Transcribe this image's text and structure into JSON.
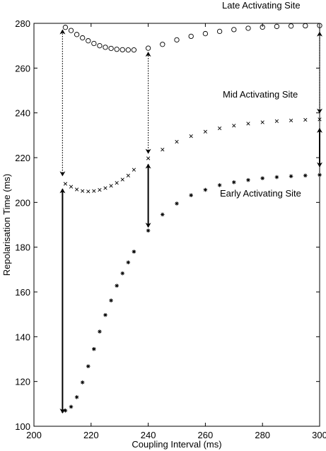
{
  "chart_data": {
    "type": "scatter",
    "xlabel": "Coupling Interval (ms)",
    "ylabel": "Repolarisation Time (ms)",
    "xlim": [
      200,
      300
    ],
    "ylim": [
      100,
      280
    ],
    "xticks": [
      200,
      220,
      240,
      260,
      280,
      300
    ],
    "yticks": [
      100,
      120,
      140,
      160,
      180,
      200,
      220,
      240,
      260,
      280
    ],
    "grid": false,
    "annotations": [
      {
        "text": "Late Activating Site",
        "series": "late"
      },
      {
        "text": "Mid Activating Site",
        "series": "mid"
      },
      {
        "text": "Early Activating Site",
        "series": "early"
      }
    ],
    "series": [
      {
        "key": "late",
        "marker": "circle",
        "points": [
          [
            211,
            278.2
          ],
          [
            213,
            276.8
          ],
          [
            215,
            275
          ],
          [
            217,
            273.5
          ],
          [
            219,
            272.2
          ],
          [
            221,
            271
          ],
          [
            223,
            270
          ],
          [
            225,
            269.3
          ],
          [
            227,
            268.8
          ],
          [
            229,
            268.4
          ],
          [
            231,
            268.2
          ],
          [
            233,
            268.1
          ],
          [
            235,
            268.1
          ],
          [
            240,
            268.9
          ],
          [
            245,
            270.6
          ],
          [
            250,
            272.6
          ],
          [
            255,
            274.2
          ],
          [
            260,
            275.4
          ],
          [
            265,
            276.4
          ],
          [
            270,
            277.2
          ],
          [
            275,
            277.8
          ],
          [
            280,
            278.3
          ],
          [
            285,
            278.6
          ],
          [
            290,
            278.8
          ],
          [
            295,
            278.9
          ],
          [
            300,
            279
          ]
        ]
      },
      {
        "key": "mid",
        "marker": "x",
        "points": [
          [
            211,
            208.3
          ],
          [
            213,
            207
          ],
          [
            215,
            205.8
          ],
          [
            217,
            205.1
          ],
          [
            219,
            204.9
          ],
          [
            221,
            205.1
          ],
          [
            223,
            205.6
          ],
          [
            225,
            206.4
          ],
          [
            227,
            207.4
          ],
          [
            229,
            208.7
          ],
          [
            231,
            210.2
          ],
          [
            233,
            212
          ],
          [
            235,
            214.6
          ],
          [
            240,
            219.7
          ],
          [
            245,
            223.6
          ],
          [
            250,
            227.1
          ],
          [
            255,
            229.6
          ],
          [
            260,
            231.6
          ],
          [
            265,
            233.1
          ],
          [
            270,
            234.3
          ],
          [
            275,
            235.2
          ],
          [
            280,
            235.8
          ],
          [
            285,
            236.3
          ],
          [
            290,
            236.6
          ],
          [
            295,
            236.9
          ],
          [
            300,
            237.1
          ]
        ]
      },
      {
        "key": "early",
        "marker": "asterisk",
        "points": [
          [
            211,
            107
          ],
          [
            213,
            108.7
          ],
          [
            215,
            113
          ],
          [
            217,
            119.6
          ],
          [
            219,
            126.8
          ],
          [
            221,
            134.5
          ],
          [
            223,
            142.3
          ],
          [
            225,
            149.7
          ],
          [
            227,
            156.2
          ],
          [
            229,
            162.8
          ],
          [
            231,
            168.3
          ],
          [
            233,
            173.2
          ],
          [
            235,
            178
          ],
          [
            240,
            187.4
          ],
          [
            245,
            194.6
          ],
          [
            250,
            199.5
          ],
          [
            255,
            203.2
          ],
          [
            260,
            205.6
          ],
          [
            265,
            207.7
          ],
          [
            270,
            209
          ],
          [
            275,
            210
          ],
          [
            280,
            210.8
          ],
          [
            285,
            211.3
          ],
          [
            290,
            211.7
          ],
          [
            295,
            212
          ],
          [
            300,
            212.3
          ]
        ]
      }
    ],
    "dotted_arrows": [
      {
        "x": 210,
        "y1": 212,
        "y2": 277
      },
      {
        "x": 240,
        "y1": 222,
        "y2": 267
      },
      {
        "x": 300,
        "y1": 240,
        "y2": 276
      }
    ],
    "double_arrows": [
      {
        "x": 210,
        "y1": 106,
        "y2": 206
      },
      {
        "x": 240,
        "y1": 189,
        "y2": 217
      },
      {
        "x": 300,
        "y1": 216,
        "y2": 233
      }
    ]
  }
}
